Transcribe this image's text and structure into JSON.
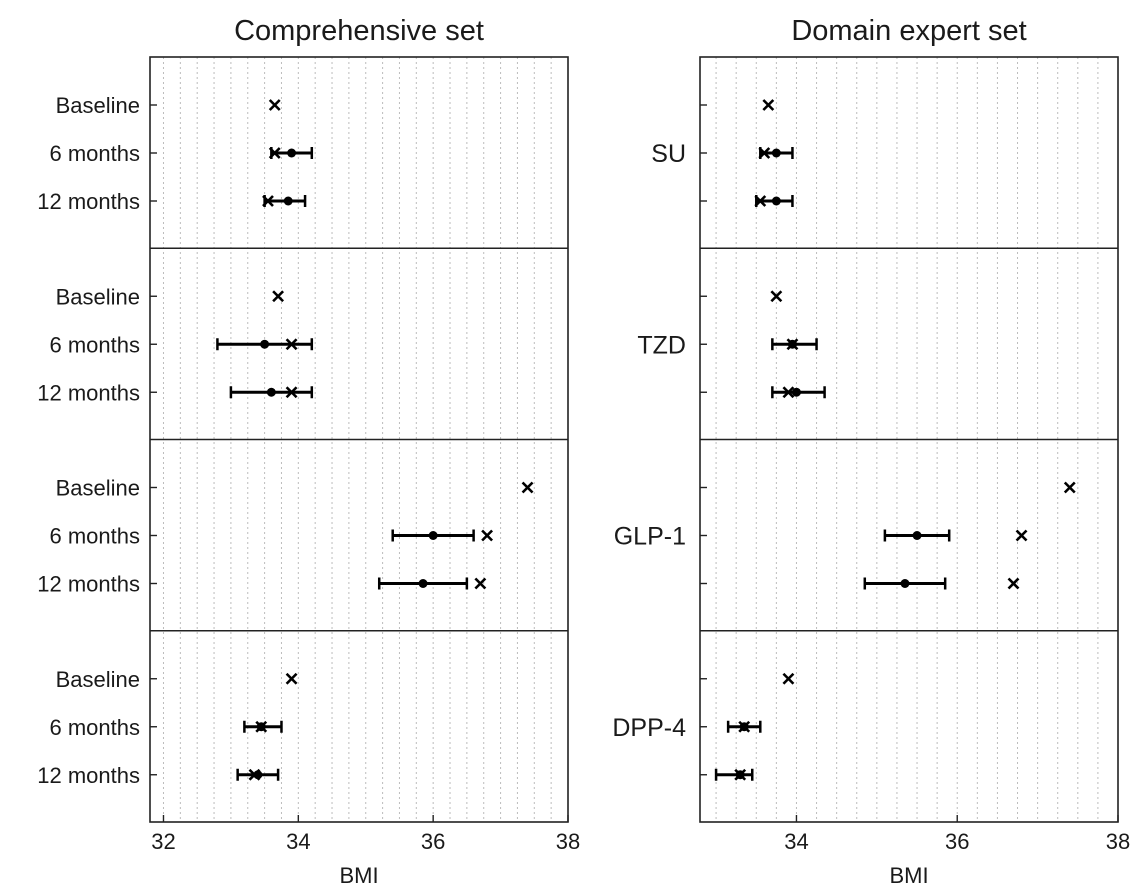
{
  "chart_data": [
    {
      "type": "forest",
      "title": "Comprehensive set",
      "xlabel": "BMI",
      "xlim": [
        31.8,
        38
      ],
      "xticks": [
        32,
        34,
        36,
        38
      ],
      "grid": true,
      "show_row_labels": true,
      "show_group_labels": false,
      "groups": [
        {
          "name": "SU",
          "rows": [
            {
              "label": "Baseline",
              "cross": 33.65
            },
            {
              "label": "6 months",
              "cross": 33.65,
              "mean": 33.9,
              "low": 33.6,
              "high": 34.2
            },
            {
              "label": "12 months",
              "cross": 33.55,
              "mean": 33.85,
              "low": 33.5,
              "high": 34.1
            }
          ]
        },
        {
          "name": "TZD",
          "rows": [
            {
              "label": "Baseline",
              "cross": 33.7
            },
            {
              "label": "6 months",
              "cross": 33.9,
              "mean": 33.5,
              "low": 32.8,
              "high": 34.2
            },
            {
              "label": "12 months",
              "cross": 33.9,
              "mean": 33.6,
              "low": 33.0,
              "high": 34.2
            }
          ]
        },
        {
          "name": "GLP-1",
          "rows": [
            {
              "label": "Baseline",
              "cross": 37.4
            },
            {
              "label": "6 months",
              "cross": 36.8,
              "mean": 36.0,
              "low": 35.4,
              "high": 36.6
            },
            {
              "label": "12 months",
              "cross": 36.7,
              "mean": 35.85,
              "low": 35.2,
              "high": 36.5
            }
          ]
        },
        {
          "name": "DPP-4",
          "rows": [
            {
              "label": "Baseline",
              "cross": 33.9
            },
            {
              "label": "6 months",
              "cross": 33.45,
              "mean": 33.45,
              "low": 33.2,
              "high": 33.75
            },
            {
              "label": "12 months",
              "cross": 33.35,
              "mean": 33.4,
              "low": 33.1,
              "high": 33.7
            }
          ]
        }
      ]
    },
    {
      "type": "forest",
      "title": "Domain expert set",
      "xlabel": "BMI",
      "xlim": [
        32.8,
        38
      ],
      "xticks": [
        34,
        36,
        38
      ],
      "grid": true,
      "show_row_labels": false,
      "show_group_labels": true,
      "groups": [
        {
          "name": "SU",
          "rows": [
            {
              "label": "Baseline",
              "cross": 33.65
            },
            {
              "label": "6 months",
              "cross": 33.6,
              "mean": 33.75,
              "low": 33.55,
              "high": 33.95
            },
            {
              "label": "12 months",
              "cross": 33.55,
              "mean": 33.75,
              "low": 33.5,
              "high": 33.95
            }
          ]
        },
        {
          "name": "TZD",
          "rows": [
            {
              "label": "Baseline",
              "cross": 33.75
            },
            {
              "label": "6 months",
              "cross": 33.95,
              "mean": 33.95,
              "low": 33.7,
              "high": 34.25
            },
            {
              "label": "12 months",
              "cross": 33.9,
              "mean": 34.0,
              "low": 33.7,
              "high": 34.35
            }
          ]
        },
        {
          "name": "GLP-1",
          "rows": [
            {
              "label": "Baseline",
              "cross": 37.4
            },
            {
              "label": "6 months",
              "cross": 36.8,
              "mean": 35.5,
              "low": 35.1,
              "high": 35.9
            },
            {
              "label": "12 months",
              "cross": 36.7,
              "mean": 35.35,
              "low": 34.85,
              "high": 35.85
            }
          ]
        },
        {
          "name": "DPP-4",
          "rows": [
            {
              "label": "Baseline",
              "cross": 33.9
            },
            {
              "label": "6 months",
              "cross": 33.35,
              "mean": 33.35,
              "low": 33.15,
              "high": 33.55
            },
            {
              "label": "12 months",
              "cross": 33.3,
              "mean": 33.3,
              "low": 33.0,
              "high": 33.45
            }
          ]
        }
      ]
    }
  ]
}
